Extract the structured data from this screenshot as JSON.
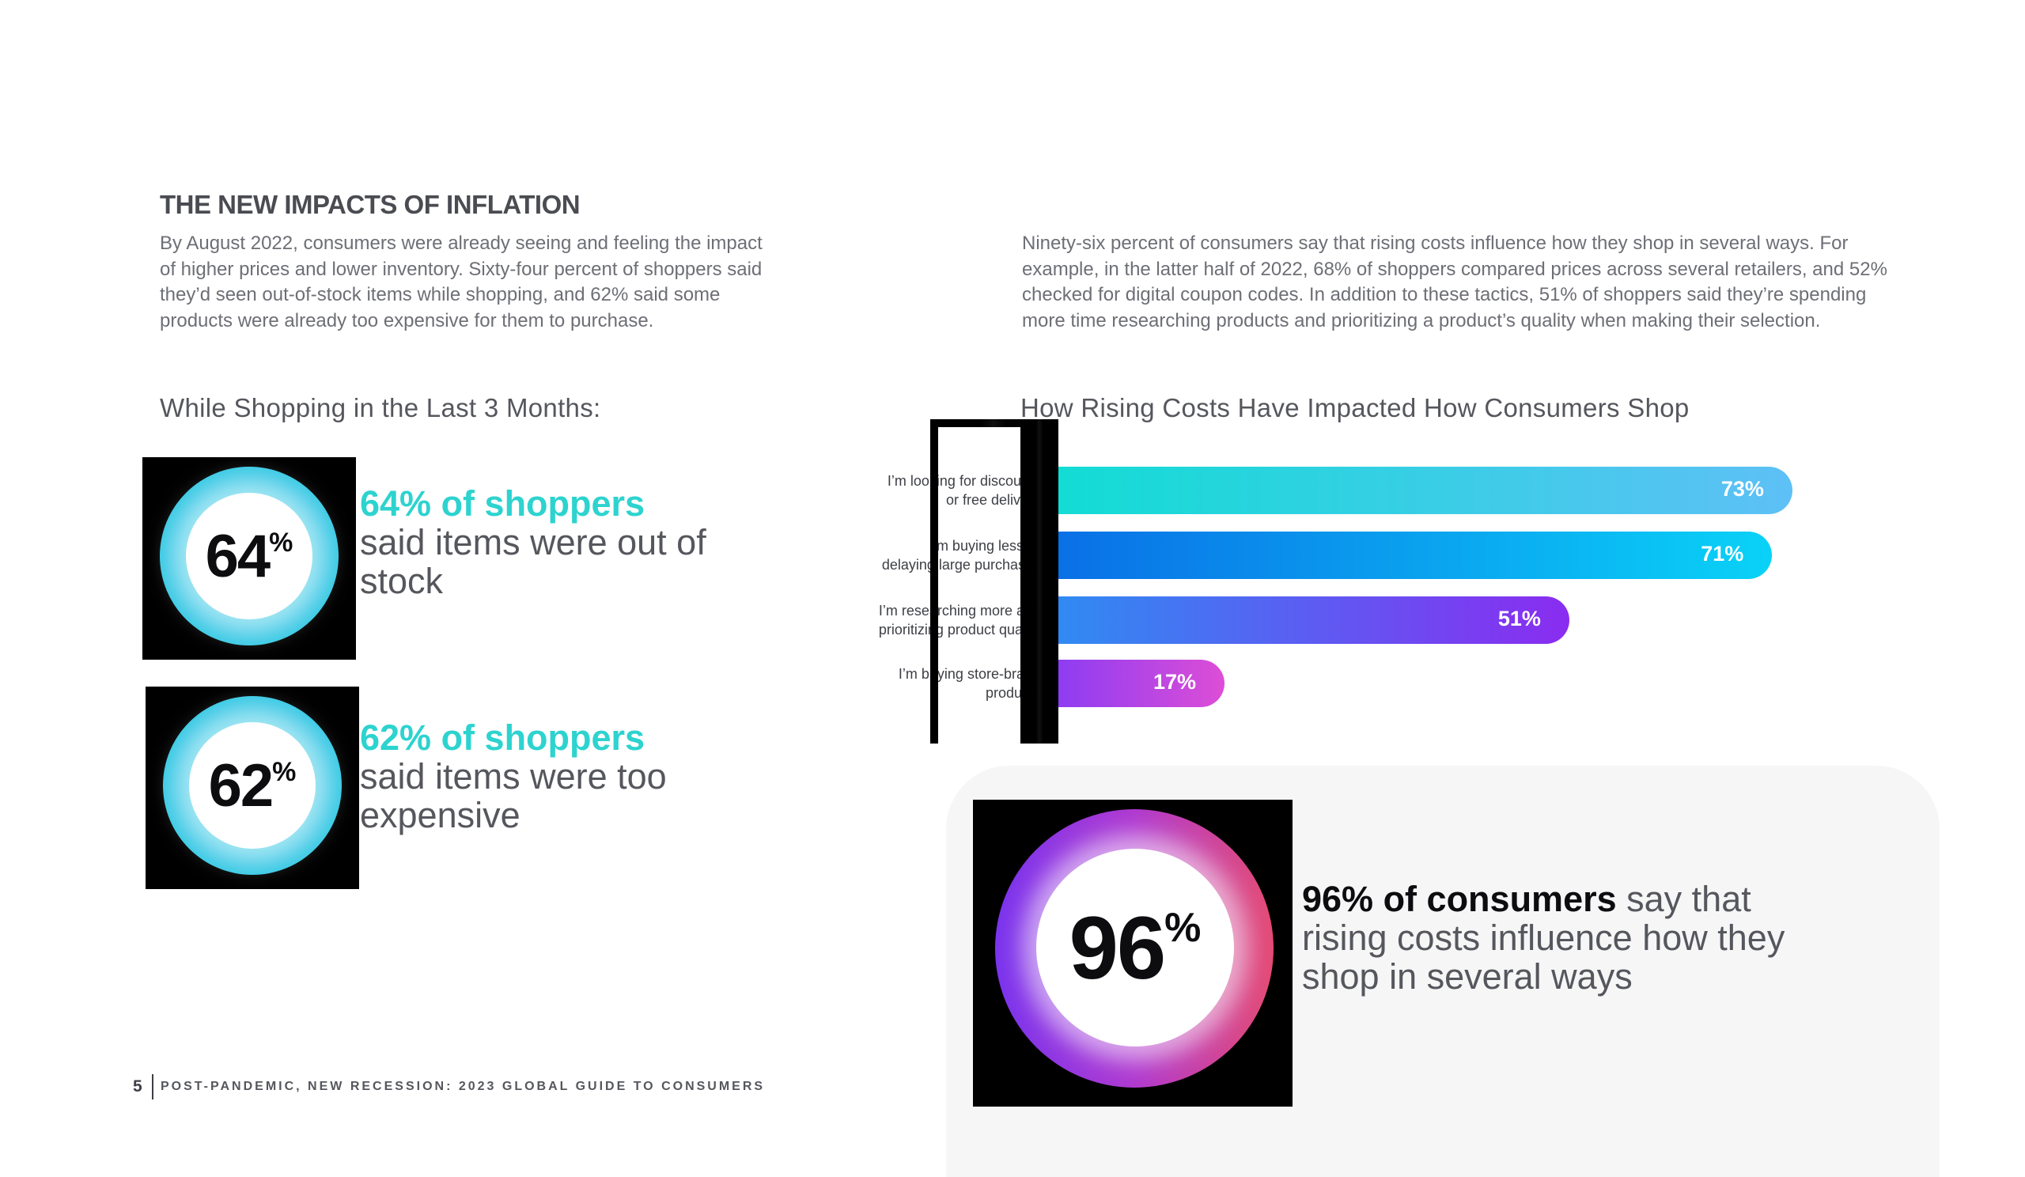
{
  "section_title": "THE NEW IMPACTS OF INFLATION",
  "intro_left": "By August 2022, consumers were already seeing and feeling the impact of higher prices and lower inventory. Sixty-four percent of shoppers said they’d seen out-of-stock items while shopping, and 62% said some products were already too expensive for them to purchase.",
  "intro_right": "Ninety-six percent of consumers say that rising costs influence how they shop in several ways. For example, in the latter half of 2022, 68% of shoppers compared prices across several retailers, and 52% checked for digital coupon codes. In addition to these tactics, 51% of shoppers said they’re spending more time researching products and prioritizing a product’s quality when making their selection.",
  "left_heading": "While Shopping in the Last 3 Months:",
  "stats": {
    "s64": {
      "number": "64",
      "pct": "%",
      "highlight": "64% of shoppers",
      "rest": "said items were out of stock",
      "value": 64
    },
    "s62": {
      "number": "62",
      "pct": "%",
      "highlight": "62% of shoppers",
      "rest": "said items were too expensive",
      "value": 62
    },
    "s96": {
      "number": "96",
      "pct": "%",
      "highlight": "96% of consumers",
      "rest": " say that rising costs influence how they shop in several ways",
      "value": 96
    }
  },
  "chart_data": {
    "type": "bar",
    "orientation": "horizontal",
    "title": "How Rising Costs Have Impacted How Consumers Shop",
    "categories": [
      "I’m looking for discounts or free delivery",
      "I’m buying less or delaying large purchases",
      "I’m researching more and prioritizing product quality",
      "I’m buying store-brand products"
    ],
    "category_lines": [
      [
        "I’m looking for discounts",
        "or free delivery"
      ],
      [
        "I’m buying less or",
        "delaying large purchases"
      ],
      [
        "I’m researching more and",
        "prioritizing product quality"
      ],
      [
        "I’m buying store-brand",
        "products"
      ]
    ],
    "values": [
      73,
      71,
      51,
      17
    ],
    "value_labels": [
      "73%",
      "71%",
      "51%",
      "17%"
    ],
    "unit": "%",
    "xlim": [
      0,
      100
    ],
    "grid": false,
    "colors": [
      [
        "#12dcd4",
        "#5ec0f6"
      ],
      [
        "#0a6fe6",
        "#0ad2f7"
      ],
      [
        "#2f8cf3",
        "#8a2cf0"
      ],
      [
        "#8a3cf3",
        "#dd4ed6"
      ]
    ]
  },
  "footer": {
    "page_number": "5",
    "title": "POST-PANDEMIC, NEW RECESSION: 2023 GLOBAL GUIDE TO CONSUMERS"
  }
}
